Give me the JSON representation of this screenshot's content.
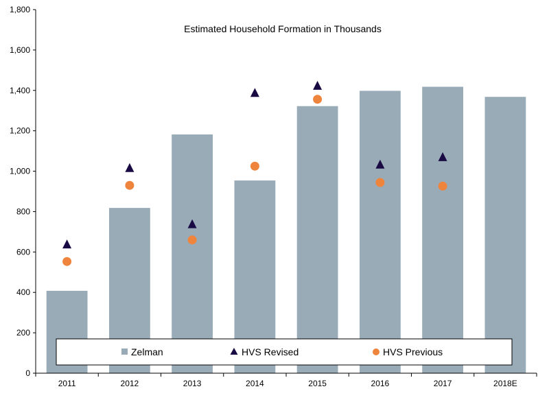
{
  "chart_data": {
    "type": "bar",
    "title": "Estimated Household Formation in Thousands",
    "xlabel": "",
    "ylabel": "",
    "ylim": [
      0,
      1800
    ],
    "yticks": [
      0,
      200,
      400,
      600,
      800,
      1000,
      1200,
      1400,
      1600,
      1800
    ],
    "ytick_labels": [
      "0",
      "200",
      "400",
      "600",
      "800",
      "1,000",
      "1,200",
      "1,400",
      "1,600",
      "1,800"
    ],
    "categories": [
      "2011",
      "2012",
      "2013",
      "2014",
      "2015",
      "2016",
      "2017",
      "2018E"
    ],
    "series": [
      {
        "name": "Zelman",
        "type": "bar",
        "color": "#9aabb8",
        "values": [
          408,
          818,
          1182,
          954,
          1322,
          1398,
          1418,
          1368
        ]
      },
      {
        "name": "HVS Revised",
        "type": "scatter",
        "marker": "triangle",
        "color": "#1a0a44",
        "values": [
          640,
          1018,
          740,
          1390,
          1425,
          1035,
          1072,
          null
        ]
      },
      {
        "name": "HVS Previous",
        "type": "scatter",
        "marker": "circle",
        "color": "#ef843c",
        "values": [
          553,
          930,
          660,
          1025,
          1356,
          944,
          926,
          null
        ]
      }
    ],
    "legend": {
      "position": "bottom-inside",
      "entries": [
        "Zelman",
        "HVS Revised",
        "HVS Previous"
      ]
    },
    "grid": false
  }
}
